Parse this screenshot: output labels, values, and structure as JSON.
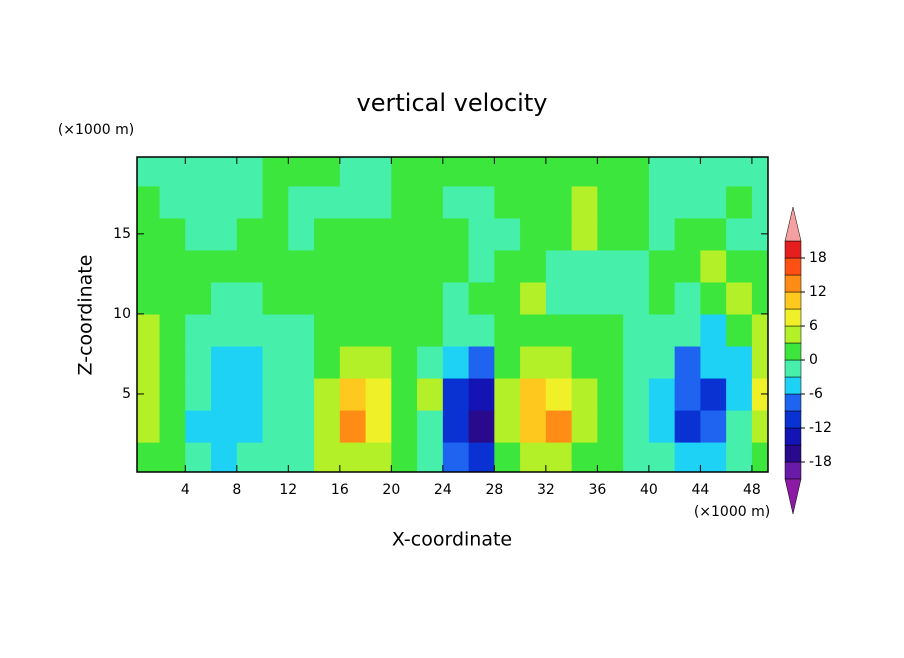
{
  "chart_data": {
    "type": "contour",
    "title": "vertical velocity",
    "x_label": "X-coordinate",
    "y_label": "Z-coordinate",
    "x_unit": "(×1000 m)",
    "y_unit": "(×1000 m)",
    "xlim": [
      0.25,
      49.25
    ],
    "ylim": [
      0.125,
      19.8
    ],
    "xticks": [
      4,
      8,
      12,
      16,
      20,
      24,
      28,
      32,
      36,
      40,
      44,
      48
    ],
    "yticks": [
      5,
      10,
      15
    ],
    "x": [
      1,
      3,
      5,
      7,
      9,
      11,
      13,
      15,
      17,
      19,
      21,
      23,
      25,
      27,
      29,
      31,
      33,
      35,
      37,
      39,
      41,
      43,
      45,
      47,
      49
    ],
    "y": [
      1,
      3,
      5,
      7,
      9,
      11,
      13,
      15,
      17,
      19
    ],
    "values": [
      [
        1,
        1,
        -1,
        -4,
        -1,
        -1,
        -1,
        4,
        4,
        4,
        1,
        -1,
        -7,
        -10,
        1,
        4,
        4,
        1,
        1,
        -1,
        -1,
        -4,
        -4,
        -1,
        1
      ],
      [
        4,
        1,
        -4,
        -4,
        -4,
        -1,
        -1,
        4,
        13,
        7,
        1,
        -1,
        -10,
        -16,
        4,
        10,
        13,
        4,
        1,
        -1,
        -4,
        -10,
        -7,
        -1,
        4
      ],
      [
        4,
        1,
        -1,
        -4,
        -4,
        -1,
        -1,
        4,
        10,
        7,
        1,
        4,
        -10,
        -13,
        4,
        10,
        7,
        4,
        1,
        -1,
        -4,
        -7,
        -10,
        -4,
        7
      ],
      [
        4,
        1,
        -1,
        -4,
        -4,
        -1,
        -1,
        1,
        4,
        4,
        1,
        -1,
        -4,
        -7,
        1,
        4,
        4,
        1,
        1,
        -1,
        -1,
        -7,
        -4,
        -4,
        4
      ],
      [
        4,
        1,
        -1,
        -1,
        -1,
        -1,
        -1,
        1,
        1,
        1,
        1,
        1,
        -1,
        -1,
        1,
        1,
        1,
        1,
        1,
        -1,
        -1,
        -1,
        -4,
        1,
        4
      ],
      [
        1,
        1,
        1,
        -1,
        -1,
        1,
        1,
        1,
        1,
        1,
        1,
        1,
        -1,
        1,
        1,
        4,
        -1,
        -1,
        -1,
        -1,
        1,
        -1,
        1,
        4,
        1
      ],
      [
        1,
        1,
        1,
        1,
        1,
        1,
        1,
        1,
        1,
        1,
        1,
        1,
        1,
        -1,
        1,
        1,
        -1,
        -1,
        -1,
        -1,
        1,
        1,
        4,
        1,
        1
      ],
      [
        1,
        1,
        -1,
        -1,
        1,
        1,
        -1,
        1,
        1,
        1,
        1,
        1,
        1,
        -1,
        -1,
        1,
        1,
        4,
        1,
        1,
        -1,
        1,
        1,
        -1,
        -1
      ],
      [
        1,
        -1,
        -1,
        -1,
        -1,
        1,
        -1,
        -1,
        -1,
        -1,
        1,
        1,
        -1,
        -1,
        1,
        1,
        1,
        4,
        1,
        1,
        -1,
        -1,
        -1,
        1,
        -1
      ],
      [
        -1,
        -1,
        -1,
        -1,
        -1,
        1,
        1,
        1,
        -1,
        -1,
        1,
        1,
        1,
        1,
        1,
        1,
        1,
        1,
        1,
        1,
        -1,
        -1,
        -1,
        -1,
        -1
      ]
    ],
    "levels": [
      -21,
      -18,
      -15,
      -12,
      -9,
      -6,
      -3,
      0,
      3,
      6,
      9,
      12,
      15,
      18,
      21
    ],
    "colors": [
      "#6a1aa8",
      "#2a0a8c",
      "#1414b4",
      "#0a32d2",
      "#1e64f0",
      "#1ed2f5",
      "#46f0aa",
      "#3ce63c",
      "#b4f028",
      "#f0f028",
      "#ffc81e",
      "#ff8c14",
      "#ff5014",
      "#e61e1e"
    ],
    "under_color": "#8c1aa5",
    "over_color": "#f4a0a0",
    "colorbar_ticks": [
      -18,
      -12,
      -6,
      0,
      6,
      12,
      18
    ]
  }
}
